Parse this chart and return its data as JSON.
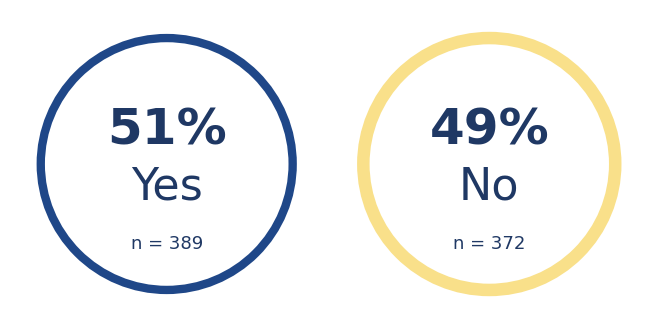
{
  "circle1": {
    "border_color": "#1f4788",
    "border_width": 6,
    "percent": "51%",
    "label": "Yes",
    "sample": "n = 389",
    "text_color": "#1f3864"
  },
  "circle2": {
    "border_color": "#f9e08a",
    "border_width": 9,
    "percent": "49%",
    "label": "No",
    "sample": "n = 372",
    "text_color": "#1f3864"
  },
  "background_color": "#ffffff",
  "percent_fontsize": 36,
  "label_fontsize": 32,
  "sample_fontsize": 13
}
